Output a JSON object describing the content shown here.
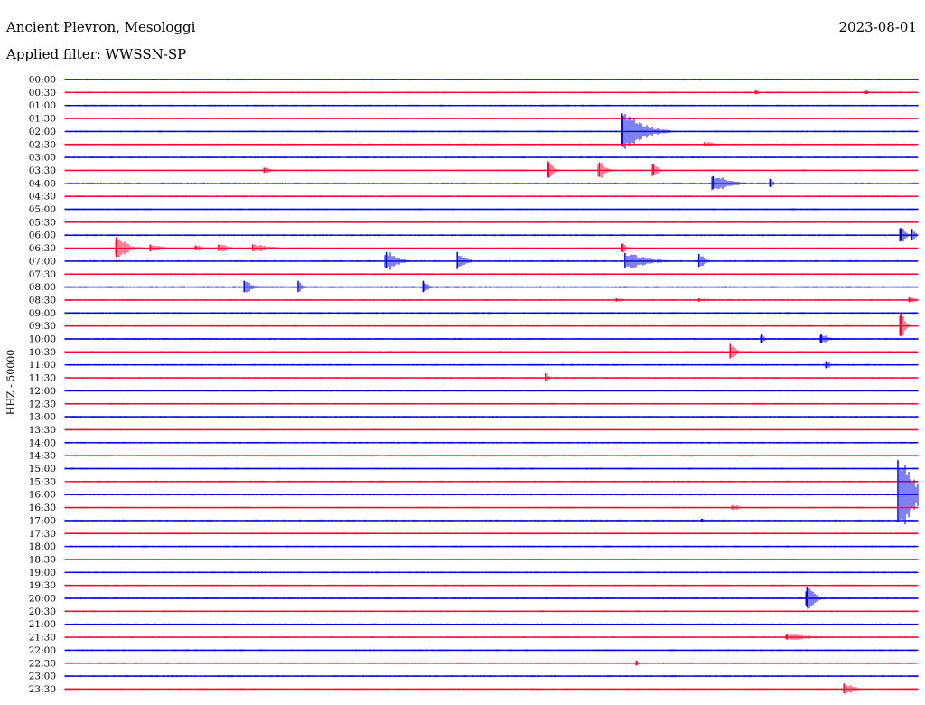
{
  "station": "Ancient Plevron, Mesologgi",
  "date": "2023-08-01",
  "filter_label": "Applied filter: WWSSN-SP",
  "channel_label": "HHZ - 50000",
  "colors": {
    "even_row": "#0000dd",
    "odd_row": "#ff0033",
    "background": "#ffffff",
    "text": "#000000"
  },
  "chart_data": {
    "type": "line",
    "title": "Ancient Plevron, Mesologgi",
    "subtitle": "Applied filter: WWSSN-SP",
    "ylabel": "HHZ - 50000",
    "xlabel": "",
    "rows": [
      "00:00",
      "00:30",
      "01:00",
      "01:30",
      "02:00",
      "02:30",
      "03:00",
      "03:30",
      "04:00",
      "04:30",
      "05:00",
      "05:30",
      "06:00",
      "06:30",
      "07:00",
      "07:30",
      "08:00",
      "08:30",
      "09:00",
      "09:30",
      "10:00",
      "10:30",
      "11:00",
      "11:30",
      "12:00",
      "12:30",
      "13:00",
      "13:30",
      "14:00",
      "14:30",
      "15:00",
      "15:30",
      "16:00",
      "16:30",
      "17:00",
      "17:30",
      "18:00",
      "18:30",
      "19:00",
      "19:30",
      "20:00",
      "20:30",
      "21:00",
      "21:30",
      "22:00",
      "22:30",
      "23:00",
      "23:30"
    ],
    "row_minutes": 30,
    "x_range_minutes": [
      0,
      30
    ],
    "grid": false,
    "events": [
      {
        "row": "00:30",
        "minute": 24.3,
        "amplitude": 2,
        "duration_min": 0.4
      },
      {
        "row": "00:30",
        "minute": 28.2,
        "amplitude": 2,
        "duration_min": 0.2
      },
      {
        "row": "02:00",
        "minute": 19.6,
        "amplitude": 20,
        "duration_min": 1.8
      },
      {
        "row": "02:30",
        "minute": 22.5,
        "amplitude": 3,
        "duration_min": 1.0
      },
      {
        "row": "03:30",
        "minute": 7.0,
        "amplitude": 3,
        "duration_min": 0.8
      },
      {
        "row": "03:30",
        "minute": 17.0,
        "amplitude": 10,
        "duration_min": 0.5
      },
      {
        "row": "03:30",
        "minute": 18.8,
        "amplitude": 9,
        "duration_min": 0.6
      },
      {
        "row": "03:30",
        "minute": 20.7,
        "amplitude": 7,
        "duration_min": 0.4
      },
      {
        "row": "04:00",
        "minute": 22.8,
        "amplitude": 8,
        "duration_min": 1.5
      },
      {
        "row": "04:00",
        "minute": 24.8,
        "amplitude": 5,
        "duration_min": 0.3
      },
      {
        "row": "06:00",
        "minute": 29.4,
        "amplitude": 8,
        "duration_min": 0.5
      },
      {
        "row": "06:00",
        "minute": 29.8,
        "amplitude": 7,
        "duration_min": 0.3
      },
      {
        "row": "06:30",
        "minute": 1.8,
        "amplitude": 12,
        "duration_min": 1.0
      },
      {
        "row": "06:30",
        "minute": 3.0,
        "amplitude": 4,
        "duration_min": 1.3
      },
      {
        "row": "06:30",
        "minute": 4.6,
        "amplitude": 3,
        "duration_min": 0.8
      },
      {
        "row": "06:30",
        "minute": 5.4,
        "amplitude": 4,
        "duration_min": 1.0
      },
      {
        "row": "06:30",
        "minute": 6.6,
        "amplitude": 4,
        "duration_min": 1.8
      },
      {
        "row": "06:30",
        "minute": 19.6,
        "amplitude": 5,
        "duration_min": 0.5
      },
      {
        "row": "07:00",
        "minute": 11.3,
        "amplitude": 10,
        "duration_min": 1.0
      },
      {
        "row": "07:00",
        "minute": 13.8,
        "amplitude": 10,
        "duration_min": 0.7
      },
      {
        "row": "07:00",
        "minute": 19.7,
        "amplitude": 9,
        "duration_min": 1.9
      },
      {
        "row": "07:00",
        "minute": 22.3,
        "amplitude": 8,
        "duration_min": 0.5
      },
      {
        "row": "08:00",
        "minute": 6.3,
        "amplitude": 7,
        "duration_min": 0.7
      },
      {
        "row": "08:00",
        "minute": 8.2,
        "amplitude": 7,
        "duration_min": 0.3
      },
      {
        "row": "08:00",
        "minute": 12.6,
        "amplitude": 7,
        "duration_min": 0.4
      },
      {
        "row": "08:30",
        "minute": 19.4,
        "amplitude": 2,
        "duration_min": 1.0
      },
      {
        "row": "08:30",
        "minute": 22.3,
        "amplitude": 2,
        "duration_min": 1.2
      },
      {
        "row": "08:30",
        "minute": 29.7,
        "amplitude": 3,
        "duration_min": 0.7
      },
      {
        "row": "09:30",
        "minute": 29.4,
        "amplitude": 14,
        "duration_min": 0.4
      },
      {
        "row": "10:00",
        "minute": 24.5,
        "amplitude": 5,
        "duration_min": 0.3
      },
      {
        "row": "10:00",
        "minute": 26.6,
        "amplitude": 5,
        "duration_min": 0.8
      },
      {
        "row": "10:30",
        "minute": 23.4,
        "amplitude": 9,
        "duration_min": 0.5
      },
      {
        "row": "11:00",
        "minute": 26.8,
        "amplitude": 5,
        "duration_min": 0.3
      },
      {
        "row": "11:30",
        "minute": 16.9,
        "amplitude": 5,
        "duration_min": 0.3
      },
      {
        "row": "16:00",
        "minute": 29.3,
        "amplitude": 38,
        "duration_min": 1.5
      },
      {
        "row": "16:30",
        "minute": 23.5,
        "amplitude": 3,
        "duration_min": 0.8
      },
      {
        "row": "17:00",
        "minute": 22.4,
        "amplitude": 2,
        "duration_min": 0.5
      },
      {
        "row": "20:00",
        "minute": 26.1,
        "amplitude": 12,
        "duration_min": 0.7
      },
      {
        "row": "21:30",
        "minute": 25.4,
        "amplitude": 3,
        "duration_min": 2.5
      },
      {
        "row": "22:30",
        "minute": 20.1,
        "amplitude": 3,
        "duration_min": 0.3
      },
      {
        "row": "23:30",
        "minute": 27.4,
        "amplitude": 6,
        "duration_min": 1.0
      }
    ]
  }
}
